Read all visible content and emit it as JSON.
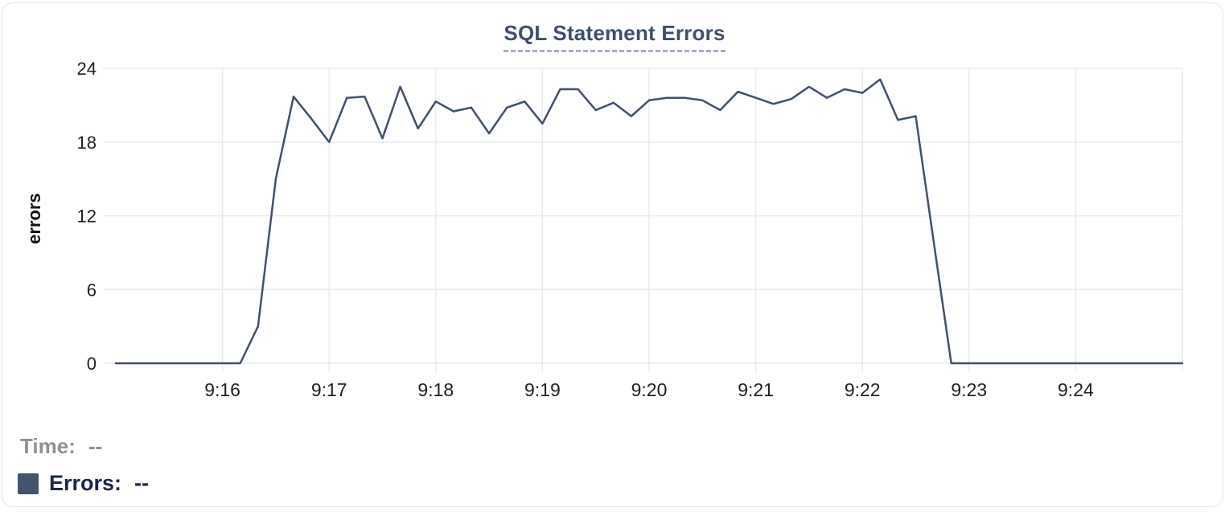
{
  "chart_data": {
    "type": "line",
    "title": "SQL Statement Errors",
    "xlabel": "",
    "ylabel": "errors",
    "ylim": [
      0,
      24
    ],
    "y_ticks": [
      0,
      6,
      12,
      18,
      24
    ],
    "x_ticks": [
      "9:16",
      "9:17",
      "9:18",
      "9:19",
      "9:20",
      "9:21",
      "9:22",
      "9:23",
      "9:24"
    ],
    "x_range": [
      "9:15:00",
      "9:25:00"
    ],
    "grid": true,
    "legend_position": "bottom-left",
    "series": [
      {
        "name": "Errors",
        "color": "#41506e",
        "points": [
          [
            "9:15:00",
            0
          ],
          [
            "9:16:00",
            0
          ],
          [
            "9:16:10",
            0
          ],
          [
            "9:16:20",
            3
          ],
          [
            "9:16:30",
            15
          ],
          [
            "9:16:40",
            21.7
          ],
          [
            "9:16:50",
            19.9
          ],
          [
            "9:17:00",
            18
          ],
          [
            "9:17:10",
            21.6
          ],
          [
            "9:17:20",
            21.7
          ],
          [
            "9:17:30",
            18.3
          ],
          [
            "9:17:40",
            22.5
          ],
          [
            "9:17:50",
            19.1
          ],
          [
            "9:18:00",
            21.3
          ],
          [
            "9:18:10",
            20.5
          ],
          [
            "9:18:20",
            20.8
          ],
          [
            "9:18:30",
            18.7
          ],
          [
            "9:18:40",
            20.8
          ],
          [
            "9:18:50",
            21.3
          ],
          [
            "9:19:00",
            19.5
          ],
          [
            "9:19:10",
            22.3
          ],
          [
            "9:19:20",
            22.3
          ],
          [
            "9:19:30",
            20.6
          ],
          [
            "9:19:40",
            21.2
          ],
          [
            "9:19:50",
            20.1
          ],
          [
            "9:20:00",
            21.4
          ],
          [
            "9:20:10",
            21.6
          ],
          [
            "9:20:20",
            21.6
          ],
          [
            "9:20:30",
            21.4
          ],
          [
            "9:20:40",
            20.6
          ],
          [
            "9:20:50",
            22.1
          ],
          [
            "9:21:00",
            21.6
          ],
          [
            "9:21:10",
            21.1
          ],
          [
            "9:21:20",
            21.5
          ],
          [
            "9:21:30",
            22.5
          ],
          [
            "9:21:40",
            21.6
          ],
          [
            "9:21:50",
            22.3
          ],
          [
            "9:22:00",
            22
          ],
          [
            "9:22:10",
            23.1
          ],
          [
            "9:22:20",
            19.8
          ],
          [
            "9:22:30",
            20.1
          ],
          [
            "9:22:40",
            10
          ],
          [
            "9:22:50",
            0
          ],
          [
            "9:23:00",
            0
          ],
          [
            "9:24:00",
            0
          ],
          [
            "9:25:00",
            0
          ]
        ]
      }
    ]
  },
  "legend": {
    "time_label": "Time:",
    "time_value": "--",
    "errors_label": "Errors:",
    "errors_value": "--",
    "swatch_color": "#44536e"
  },
  "colors": {
    "axis_text": "#1f1f1f",
    "gridline": "#e9eaeb",
    "title": "#3e4f6e"
  }
}
